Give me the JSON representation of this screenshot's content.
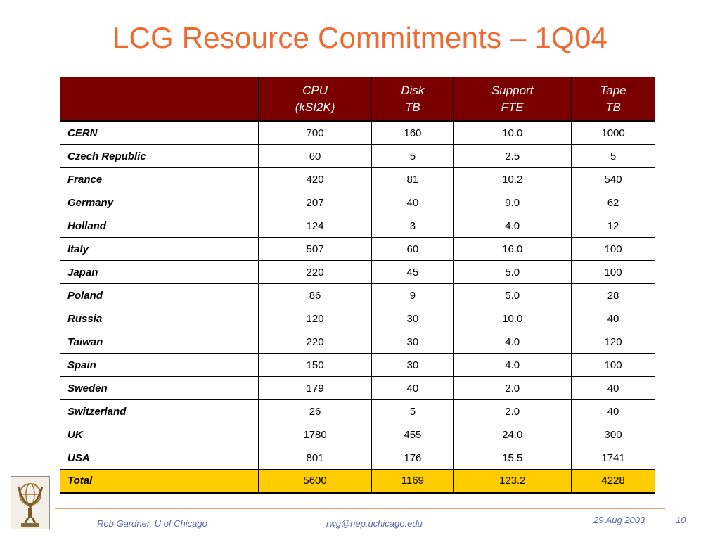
{
  "slide": {
    "title": "LCG Resource Commitments – 1Q04"
  },
  "table": {
    "headers": [
      {
        "line1": "",
        "line2": ""
      },
      {
        "line1": "CPU",
        "line2": "(kSI2K)"
      },
      {
        "line1": "Disk",
        "line2": "TB"
      },
      {
        "line1": "Support",
        "line2": "FTE"
      },
      {
        "line1": "Tape",
        "line2": "TB"
      }
    ],
    "rows": [
      {
        "site": "CERN",
        "cpu": "700",
        "disk": "160",
        "support": "10.0",
        "tape": "1000"
      },
      {
        "site": "Czech Republic",
        "cpu": "60",
        "disk": "5",
        "support": "2.5",
        "tape": "5"
      },
      {
        "site": "France",
        "cpu": "420",
        "disk": "81",
        "support": "10.2",
        "tape": "540"
      },
      {
        "site": "Germany",
        "cpu": "207",
        "disk": "40",
        "support": "9.0",
        "tape": "62"
      },
      {
        "site": "Holland",
        "cpu": "124",
        "disk": "3",
        "support": "4.0",
        "tape": "12"
      },
      {
        "site": "Italy",
        "cpu": "507",
        "disk": "60",
        "support": "16.0",
        "tape": "100"
      },
      {
        "site": "Japan",
        "cpu": "220",
        "disk": "45",
        "support": "5.0",
        "tape": "100"
      },
      {
        "site": "Poland",
        "cpu": "86",
        "disk": "9",
        "support": "5.0",
        "tape": "28"
      },
      {
        "site": "Russia",
        "cpu": "120",
        "disk": "30",
        "support": "10.0",
        "tape": "40"
      },
      {
        "site": "Taiwan",
        "cpu": "220",
        "disk": "30",
        "support": "4.0",
        "tape": "120"
      },
      {
        "site": "Spain",
        "cpu": "150",
        "disk": "30",
        "support": "4.0",
        "tape": "100"
      },
      {
        "site": "Sweden",
        "cpu": "179",
        "disk": "40",
        "support": "2.0",
        "tape": "40"
      },
      {
        "site": "Switzerland",
        "cpu": "26",
        "disk": "5",
        "support": "2.0",
        "tape": "40"
      },
      {
        "site": "UK",
        "cpu": "1780",
        "disk": "455",
        "support": "24.0",
        "tape": "300"
      },
      {
        "site": "USA",
        "cpu": "801",
        "disk": "176",
        "support": "15.5",
        "tape": "1741"
      }
    ],
    "total": {
      "site": "Total",
      "cpu": "5600",
      "disk": "1169",
      "support": "123.2",
      "tape": "4228"
    },
    "colors": {
      "header_bg": "#7a0000",
      "header_text": "#ffffff",
      "total_bg": "#ffcc00"
    }
  },
  "footer": {
    "author": "Rob Gardner, U of Chicago",
    "email": "rwg@hep.uchicago.edu",
    "date": "29 Aug 2003",
    "page": "10"
  },
  "logo": {
    "icon": "atlas-statue-icon"
  },
  "colors": {
    "title": "#f06a30",
    "footer_text": "#5a6ab0",
    "footer_rule": "#f0a070"
  }
}
